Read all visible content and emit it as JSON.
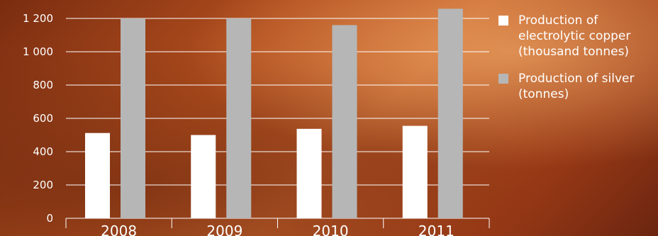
{
  "chart_data": {
    "type": "bar",
    "categories": [
      "2008",
      "2009",
      "2010",
      "2011"
    ],
    "series": [
      {
        "name": "Production of electrolytic copper (thousand tonnes)",
        "values": [
          512,
          500,
          537,
          555
        ],
        "color": "#ffffff"
      },
      {
        "name": "Production of silver (tonnes)",
        "values": [
          1200,
          1200,
          1160,
          1258
        ],
        "color": "#b6b6b6"
      }
    ],
    "yticks": [
      "0",
      "200",
      "400",
      "600",
      "800",
      "1 000",
      "1 200"
    ],
    "ylim": [
      0,
      1200
    ],
    "grid": true,
    "legend_position": "right"
  },
  "legend": {
    "items": [
      {
        "label": "Production of electrolytic copper (thousand tonnes)"
      },
      {
        "label": "Production of silver (tonnes)"
      }
    ]
  }
}
